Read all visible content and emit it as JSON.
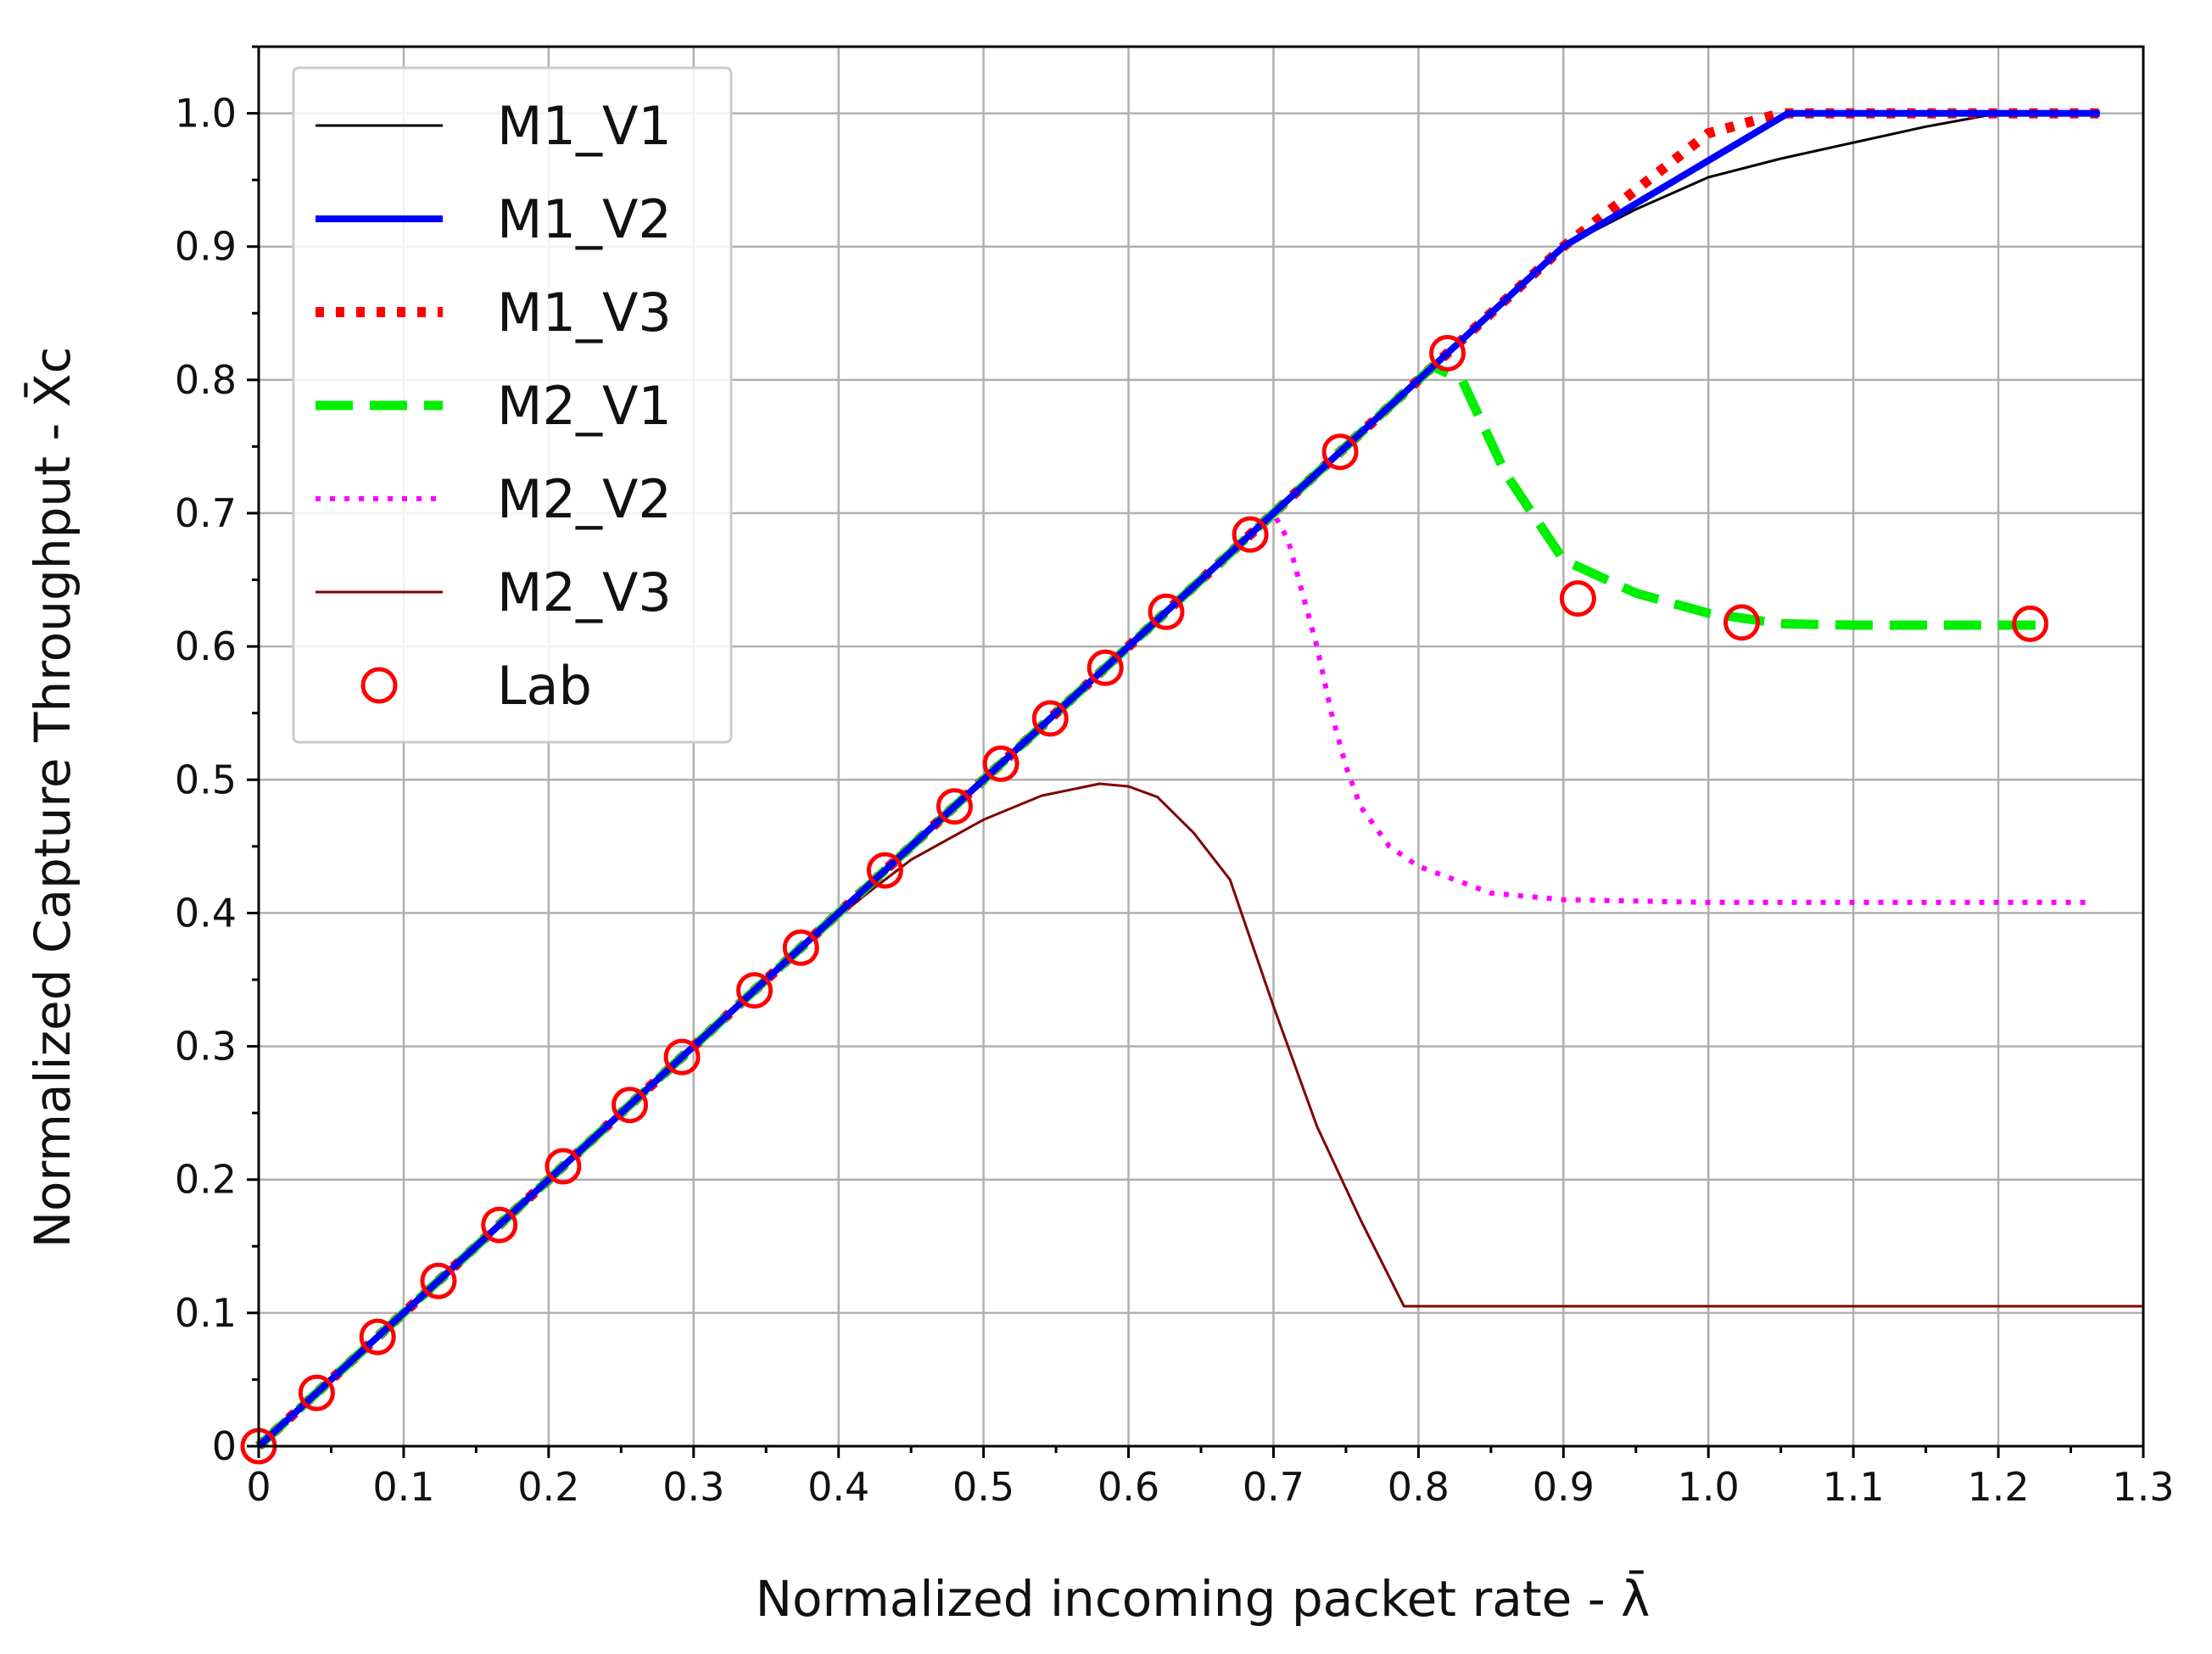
{
  "chart_data": {
    "type": "line",
    "title": "",
    "xlabel": "Normalized incoming packet rate - λ̄",
    "ylabel": "Normalized Capture Throughput - X̄c",
    "xlim": [
      0,
      1.3
    ],
    "ylim": [
      0,
      1.05
    ],
    "grid": true,
    "legend_position": "top-left",
    "x_ticks": [
      {
        "value": 0,
        "label": "0"
      },
      {
        "value": 0.1,
        "label": "0.1"
      },
      {
        "value": 0.2,
        "label": "0.2"
      },
      {
        "value": 0.3,
        "label": "0.3"
      },
      {
        "value": 0.4,
        "label": "0.4"
      },
      {
        "value": 0.5,
        "label": "0.5"
      },
      {
        "value": 0.6,
        "label": "0.6"
      },
      {
        "value": 0.7,
        "label": "0.7"
      },
      {
        "value": 0.8,
        "label": "0.8"
      },
      {
        "value": 0.9,
        "label": "0.9"
      },
      {
        "value": 1.0,
        "label": "1.0"
      },
      {
        "value": 1.1,
        "label": "1.1"
      },
      {
        "value": 1.2,
        "label": "1.2"
      },
      {
        "value": 1.3,
        "label": "1.3"
      }
    ],
    "y_ticks": [
      {
        "value": 0,
        "label": "0"
      },
      {
        "value": 0.1,
        "label": "0.1"
      },
      {
        "value": 0.2,
        "label": "0.2"
      },
      {
        "value": 0.3,
        "label": "0.3"
      },
      {
        "value": 0.4,
        "label": "0.4"
      },
      {
        "value": 0.5,
        "label": "0.5"
      },
      {
        "value": 0.6,
        "label": "0.6"
      },
      {
        "value": 0.7,
        "label": "0.7"
      },
      {
        "value": 0.8,
        "label": "0.8"
      },
      {
        "value": 0.9,
        "label": "0.9"
      },
      {
        "value": 1.0,
        "label": "1.0"
      }
    ],
    "series": [
      {
        "name": "M1_V1",
        "style": "solid-thin",
        "color": "#000000",
        "x": [
          0,
          0.1,
          0.2,
          0.3,
          0.4,
          0.5,
          0.6,
          0.7,
          0.8,
          0.9,
          0.95,
          1.0,
          1.05,
          1.1,
          1.15,
          1.2,
          1.25,
          1.27
        ],
        "y": [
          0,
          0.1,
          0.2,
          0.3,
          0.4,
          0.5,
          0.6,
          0.7,
          0.8,
          0.9,
          0.928,
          0.952,
          0.966,
          0.978,
          0.99,
          1.0,
          1.0,
          1.0
        ]
      },
      {
        "name": "M1_V2",
        "style": "solid-thick",
        "color": "#0000ff",
        "x": [
          0,
          0.9,
          1.055,
          1.27
        ],
        "y": [
          0,
          0.9,
          1.0,
          1.0
        ]
      },
      {
        "name": "M1_V3",
        "style": "dotted-thick",
        "color": "#ff0000",
        "x": [
          0,
          0.9,
          1.0,
          1.05,
          1.1,
          1.2,
          1.27
        ],
        "y": [
          0,
          0.9,
          0.985,
          1.0,
          1.0,
          1.0,
          1.0
        ]
      },
      {
        "name": "M2_V1",
        "style": "dashed-thick",
        "color": "#00ee00",
        "x": [
          0,
          0.81,
          0.83,
          0.86,
          0.9,
          0.95,
          1.0,
          1.05,
          1.1,
          1.2,
          1.23
        ],
        "y": [
          0,
          0.81,
          0.8,
          0.73,
          0.665,
          0.64,
          0.625,
          0.617,
          0.616,
          0.616,
          0.616
        ]
      },
      {
        "name": "M2_V2",
        "style": "dotted",
        "color": "#ff00ff",
        "x": [
          0,
          0.7,
          0.71,
          0.72,
          0.73,
          0.74,
          0.75,
          0.76,
          0.78,
          0.8,
          0.85,
          0.9,
          1.0,
          1.1,
          1.2,
          1.26
        ],
        "y": [
          0,
          0.7,
          0.68,
          0.64,
          0.6,
          0.55,
          0.51,
          0.48,
          0.45,
          0.435,
          0.415,
          0.41,
          0.408,
          0.408,
          0.408,
          0.408
        ]
      },
      {
        "name": "M2_V3",
        "style": "solid-thin",
        "color": "#800000",
        "x": [
          0,
          0.38,
          0.42,
          0.45,
          0.5,
          0.54,
          0.58,
          0.6,
          0.62,
          0.645,
          0.67,
          0.7,
          0.73,
          0.76,
          0.79,
          0.8,
          0.9,
          1.0,
          1.1,
          1.2,
          1.3
        ],
        "y": [
          0,
          0.38,
          0.415,
          0.44,
          0.47,
          0.488,
          0.497,
          0.495,
          0.487,
          0.46,
          0.425,
          0.33,
          0.24,
          0.17,
          0.105,
          0.105,
          0.105,
          0.105,
          0.105,
          0.105,
          0.105
        ]
      },
      {
        "name": "Lab",
        "style": "markers",
        "color": "#ff0000",
        "x": [
          0.0,
          0.04,
          0.082,
          0.124,
          0.166,
          0.21,
          0.256,
          0.292,
          0.342,
          0.374,
          0.432,
          0.48,
          0.512,
          0.546,
          0.584,
          0.626,
          0.684,
          0.746,
          0.82,
          0.91,
          1.023,
          1.222
        ],
        "y": [
          0.0,
          0.04,
          0.082,
          0.124,
          0.166,
          0.21,
          0.256,
          0.292,
          0.342,
          0.374,
          0.432,
          0.48,
          0.512,
          0.546,
          0.584,
          0.626,
          0.684,
          0.746,
          0.82,
          0.636,
          0.618,
          0.617
        ]
      }
    ]
  }
}
